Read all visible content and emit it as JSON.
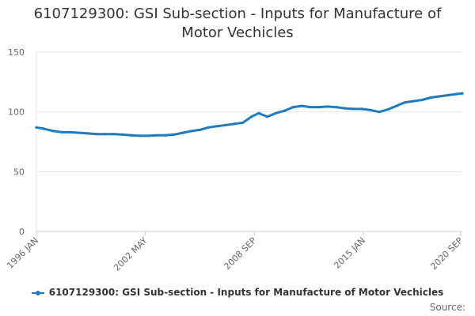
{
  "chart_data": {
    "type": "line",
    "title_lines": [
      "6107129300: GSI Sub-section - Inputs for Manufacture of",
      "Motor Vechicles"
    ],
    "xlabel": "",
    "ylabel": "",
    "ylim": [
      0,
      150
    ],
    "y_ticks": [
      0,
      50,
      100,
      150
    ],
    "y_tick_labels": [
      "0",
      "50",
      "100",
      "150"
    ],
    "x_range": [
      "1996-01",
      "2020-10"
    ],
    "x_ticks": [
      {
        "date": "1996-01",
        "label": "1996 JAN"
      },
      {
        "date": "2002-05",
        "label": "2002 MAY"
      },
      {
        "date": "2008-09",
        "label": "2008 SEP"
      },
      {
        "date": "2015-01",
        "label": "2015 JAN"
      },
      {
        "date": "2020-09",
        "label": "2020 SEP"
      }
    ],
    "grid": true,
    "legend_position": "bottom",
    "series": [
      {
        "name": "6107129300: GSI Sub-section - Inputs for Manufacture of Motor Vechicles",
        "color": "#1f7bbf",
        "x": [
          "1996-01",
          "1996-06",
          "1997-01",
          "1997-07",
          "1998-01",
          "1998-07",
          "1999-01",
          "1999-07",
          "2000-01",
          "2000-07",
          "2001-01",
          "2001-07",
          "2002-01",
          "2002-07",
          "2003-01",
          "2003-07",
          "2004-01",
          "2004-07",
          "2005-01",
          "2005-07",
          "2006-01",
          "2006-07",
          "2007-01",
          "2007-07",
          "2008-01",
          "2008-07",
          "2008-12",
          "2009-06",
          "2009-12",
          "2010-06",
          "2010-12",
          "2011-06",
          "2011-12",
          "2012-06",
          "2012-12",
          "2013-06",
          "2013-12",
          "2014-06",
          "2014-12",
          "2015-06",
          "2015-12",
          "2016-06",
          "2016-12",
          "2017-06",
          "2017-12",
          "2018-06",
          "2018-12",
          "2019-06",
          "2019-12",
          "2020-06",
          "2020-10"
        ],
        "values": [
          87,
          86,
          84,
          83,
          83,
          82.5,
          82,
          81.5,
          81.5,
          81.5,
          81,
          80.5,
          80,
          80,
          80.5,
          80.5,
          81,
          82.5,
          84,
          85,
          87,
          88,
          89,
          90,
          91,
          96,
          99,
          96,
          99,
          101,
          104,
          105,
          104,
          104,
          104.5,
          104,
          103,
          102.5,
          102.5,
          101.5,
          100,
          102,
          105,
          108,
          109,
          110,
          112,
          113,
          114,
          115,
          115.5
        ]
      }
    ]
  },
  "legend": {
    "label": "6107129300: GSI Sub-section - Inputs for Manufacture of Motor Vechicles"
  },
  "source": {
    "label": "Source:"
  },
  "colors": {
    "series": "#1f7bbf",
    "grid": "#e6e6e6",
    "axis": "#cccccc",
    "tick_text": "#666666"
  }
}
